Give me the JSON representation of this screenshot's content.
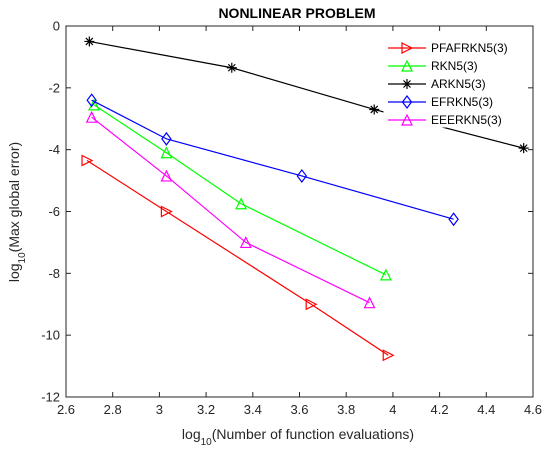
{
  "chart_data": {
    "type": "line",
    "title": "NONLINEAR PROBLEM",
    "xlabel": {
      "prefix": "log",
      "sub": "10",
      "suffix": "(Number of function evaluations)"
    },
    "ylabel": {
      "prefix": "log",
      "sub": "10",
      "suffix": "(Max global error)"
    },
    "xlim": [
      2.6,
      4.6
    ],
    "ylim": [
      -12,
      0
    ],
    "xticks": [
      2.6,
      2.8,
      3,
      3.2,
      3.4,
      3.6,
      3.8,
      4,
      4.2,
      4.4,
      4.6
    ],
    "xtick_labels": [
      "2.6",
      "2.8",
      "3",
      "3.2",
      "3.4",
      "3.6",
      "3.8",
      "4",
      "4.2",
      "4.4",
      "4.6"
    ],
    "yticks": [
      -12,
      -10,
      -8,
      -6,
      -4,
      -2,
      0
    ],
    "ytick_labels": [
      "-12",
      "-10",
      "-8",
      "-6",
      "-4",
      "-2",
      "0"
    ],
    "grid": false,
    "legend_position": "top-right",
    "series": [
      {
        "name": "PFAFRKN5(3)",
        "color": "#ff0000",
        "marker": "triangle-right",
        "x": [
          2.69,
          3.03,
          3.65,
          3.98
        ],
        "y": [
          -4.35,
          -6.0,
          -9.0,
          -10.65
        ]
      },
      {
        "name": "RKN5(3)",
        "color": "#00ff00",
        "marker": "triangle-up",
        "x": [
          2.72,
          3.03,
          3.35,
          3.97
        ],
        "y": [
          -2.55,
          -4.1,
          -5.75,
          -8.05
        ]
      },
      {
        "name": "ARKN5(3)",
        "color": "#000000",
        "marker": "asterisk",
        "x": [
          2.7,
          3.31,
          3.92,
          4.56
        ],
        "y": [
          -0.5,
          -1.35,
          -2.7,
          -3.95
        ]
      },
      {
        "name": "EFRKN5(3)",
        "color": "#0000ff",
        "marker": "diamond",
        "x": [
          2.71,
          3.03,
          3.61,
          4.26
        ],
        "y": [
          -2.4,
          -3.65,
          -4.85,
          -6.25
        ]
      },
      {
        "name": "EEERKN5(3)",
        "color": "#ff00ff",
        "marker": "triangle-up",
        "x": [
          2.71,
          3.03,
          3.37,
          3.9
        ],
        "y": [
          -2.95,
          -4.85,
          -7.0,
          -8.95
        ]
      }
    ]
  }
}
